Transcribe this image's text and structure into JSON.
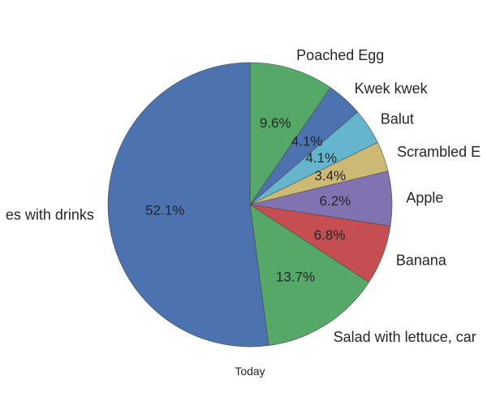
{
  "chart_data": {
    "type": "pie",
    "xlabel": "Today",
    "start_angle_deg": 90,
    "direction": "clockwise",
    "slices": [
      {
        "label": "Poached Egg",
        "value": 9.6,
        "pct_label": "9.6%",
        "color": "#55a868"
      },
      {
        "label": "Kwek kwek",
        "value": 4.1,
        "pct_label": "4.1%",
        "color": "#4c72b0"
      },
      {
        "label": "Balut",
        "value": 4.1,
        "pct_label": "4.1%",
        "color": "#64b5cd"
      },
      {
        "label": "Scrambled E",
        "value": 3.4,
        "pct_label": "3.4%",
        "color": "#ccb974"
      },
      {
        "label": "Apple",
        "value": 6.2,
        "pct_label": "6.2%",
        "color": "#8172b2"
      },
      {
        "label": "Banana",
        "value": 6.8,
        "pct_label": "6.8%",
        "color": "#c44e52"
      },
      {
        "label": "Salad with lettuce, car",
        "value": 13.7,
        "pct_label": "13.7%",
        "color": "#55a868"
      },
      {
        "label": "es with drinks",
        "value": 52.1,
        "pct_label": "52.1%",
        "color": "#4c72b0"
      }
    ]
  }
}
